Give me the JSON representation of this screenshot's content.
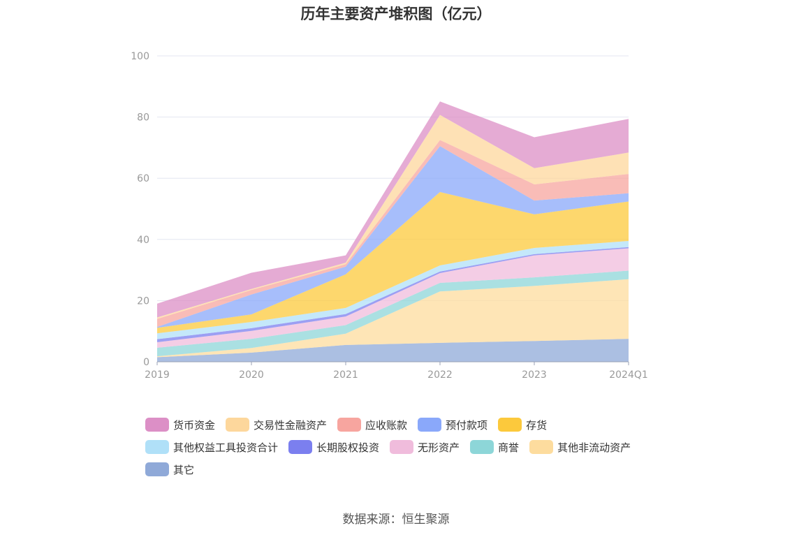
{
  "chart_data": {
    "type": "area",
    "stacked": true,
    "title": "历年主要资产堆积图（亿元）",
    "x": [
      "2019",
      "2020",
      "2021",
      "2022",
      "2023",
      "2024Q1"
    ],
    "ylim": [
      0,
      100
    ],
    "yticks": [
      "0",
      "20",
      "40",
      "60",
      "80",
      "100"
    ],
    "grid": true,
    "legend_position": "bottom-left",
    "series": [
      {
        "name": "其它",
        "color": "#8fa9d8",
        "values": [
          1.5,
          3.0,
          5.5,
          6.2,
          6.8,
          7.5
        ]
      },
      {
        "name": "其他非流动资产",
        "color": "#fddc9e",
        "values": [
          0.3,
          1.5,
          3.7,
          16.8,
          18.0,
          19.5
        ]
      },
      {
        "name": "商誉",
        "color": "#8dd6d8",
        "values": [
          2.8,
          3.0,
          2.8,
          2.8,
          2.8,
          2.8
        ]
      },
      {
        "name": "无形资产",
        "color": "#f0bcdc",
        "values": [
          1.8,
          2.6,
          2.8,
          3.2,
          7.2,
          7.3
        ]
      },
      {
        "name": "长期股权投资",
        "color": "#7b7fef",
        "values": [
          1.0,
          0.9,
          0.8,
          0.5,
          0.4,
          0.4
        ]
      },
      {
        "name": "其他权益工具投资合计",
        "color": "#b0e0f8",
        "values": [
          1.9,
          2.0,
          2.0,
          2.0,
          2.0,
          2.0
        ]
      },
      {
        "name": "存货",
        "color": "#fcc93c",
        "values": [
          1.8,
          2.5,
          11.0,
          24.0,
          11.0,
          12.9
        ]
      },
      {
        "name": "预付款项",
        "color": "#8aa8fa",
        "values": [
          0.3,
          6.5,
          2.5,
          15.0,
          4.5,
          2.7
        ]
      },
      {
        "name": "应收账款",
        "color": "#f7a59f",
        "values": [
          2.6,
          1.5,
          0.8,
          2.0,
          5.3,
          6.3
        ]
      },
      {
        "name": "交易性金融资产",
        "color": "#fdd79c",
        "values": [
          0.5,
          0.3,
          0.5,
          8.2,
          5.3,
          7.0
        ]
      },
      {
        "name": "货币资金",
        "color": "#dc8fc6",
        "values": [
          4.5,
          5.3,
          2.4,
          4.4,
          10.1,
          11.0
        ]
      }
    ]
  },
  "legend_order": [
    "货币资金",
    "交易性金融资产",
    "应收账款",
    "预付款项",
    "存货",
    "其他权益工具投资合计",
    "长期股权投资",
    "无形资产",
    "商誉",
    "其他非流动资产",
    "其它"
  ],
  "source": "数据来源：恒生聚源"
}
